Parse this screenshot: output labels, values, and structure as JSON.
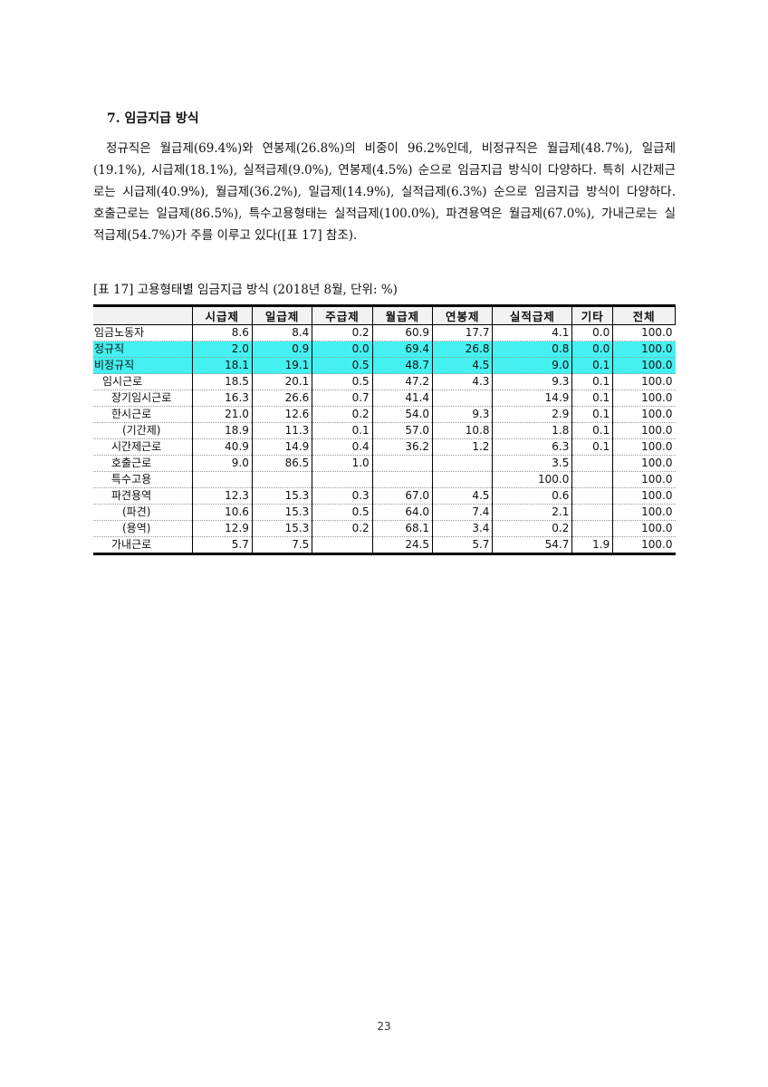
{
  "section_heading": "7. 임금지급 방식",
  "paragraph_lines": [
    "정규직은 월급제(69.4%)와 연봉제(26.8%)의 비중이 96.2%인데, 비정규직은 월급제(48.7%), 일급제",
    "(19.1%), 시급제(18.1%), 실적급제(9.0%), 연봉제(4.5%) 순으로 임금지급 방식이 다양하다. 특히 시간제근",
    "로는 시급제(40.9%), 월급제(36.2%), 일급제(14.9%), 실적급제(6.3%) 순으로 임금지급 방식이 다양하다.",
    "호출근로는 일급제(86.5%), 특수고용형태는 실적급제(100.0%), 파견용역은 월급제(67.0%), 가내근로는 실",
    "적급제(54.7%)가 주를 이루고 있다([표 17] 참조)."
  ],
  "table_caption": "[표 17] 고용형태별 임금지급 방식 (2018년 8월, 단위: %)",
  "highlight_color": "#45f0f0",
  "table": {
    "columns": [
      "시급제",
      "일급제",
      "주급제",
      "월급제",
      "연봉제",
      "실적급제",
      "기타",
      "전체"
    ],
    "rows": [
      {
        "label": "임금노동자",
        "level": 0,
        "highlight": false,
        "values": [
          "8.6",
          "8.4",
          "0.2",
          "60.9",
          "17.7",
          "4.1",
          "0.0",
          "100.0"
        ]
      },
      {
        "label": "정규직",
        "level": 0,
        "highlight": true,
        "values": [
          "2.0",
          "0.9",
          "0.0",
          "69.4",
          "26.8",
          "0.8",
          "0.0",
          "100.0"
        ]
      },
      {
        "label": "비정규직",
        "level": 0,
        "highlight": true,
        "values": [
          "18.1",
          "19.1",
          "0.5",
          "48.7",
          "4.5",
          "9.0",
          "0.1",
          "100.0"
        ]
      },
      {
        "label": "임시근로",
        "level": 1,
        "highlight": false,
        "values": [
          "18.5",
          "20.1",
          "0.5",
          "47.2",
          "4.3",
          "9.3",
          "0.1",
          "100.0"
        ]
      },
      {
        "label": "장기임시근로",
        "level": 2,
        "highlight": false,
        "values": [
          "16.3",
          "26.6",
          "0.7",
          "41.4",
          "",
          "14.9",
          "0.1",
          "100.0"
        ]
      },
      {
        "label": "한시근로",
        "level": 2,
        "highlight": false,
        "values": [
          "21.0",
          "12.6",
          "0.2",
          "54.0",
          "9.3",
          "2.9",
          "0.1",
          "100.0"
        ]
      },
      {
        "label": "(기간제)",
        "level": 3,
        "highlight": false,
        "values": [
          "18.9",
          "11.3",
          "0.1",
          "57.0",
          "10.8",
          "1.8",
          "0.1",
          "100.0"
        ]
      },
      {
        "label": "시간제근로",
        "level": 2,
        "highlight": false,
        "values": [
          "40.9",
          "14.9",
          "0.4",
          "36.2",
          "1.2",
          "6.3",
          "0.1",
          "100.0"
        ]
      },
      {
        "label": "호출근로",
        "level": 2,
        "highlight": false,
        "values": [
          "9.0",
          "86.5",
          "1.0",
          "",
          "",
          "3.5",
          "",
          "100.0"
        ]
      },
      {
        "label": "특수고용",
        "level": 2,
        "highlight": false,
        "values": [
          "",
          "",
          "",
          "",
          "",
          "100.0",
          "",
          "100.0"
        ]
      },
      {
        "label": "파견용역",
        "level": 2,
        "highlight": false,
        "values": [
          "12.3",
          "15.3",
          "0.3",
          "67.0",
          "4.5",
          "0.6",
          "",
          "100.0"
        ]
      },
      {
        "label": "(파견)",
        "level": 3,
        "highlight": false,
        "values": [
          "10.6",
          "15.3",
          "0.5",
          "64.0",
          "7.4",
          "2.1",
          "",
          "100.0"
        ]
      },
      {
        "label": "(용역)",
        "level": 3,
        "highlight": false,
        "values": [
          "12.9",
          "15.3",
          "0.2",
          "68.1",
          "3.4",
          "0.2",
          "",
          "100.0"
        ]
      },
      {
        "label": "가내근로",
        "level": 2,
        "highlight": false,
        "values": [
          "5.7",
          "7.5",
          "",
          "24.5",
          "5.7",
          "54.7",
          "1.9",
          "100.0"
        ]
      }
    ]
  },
  "page_number": "23"
}
